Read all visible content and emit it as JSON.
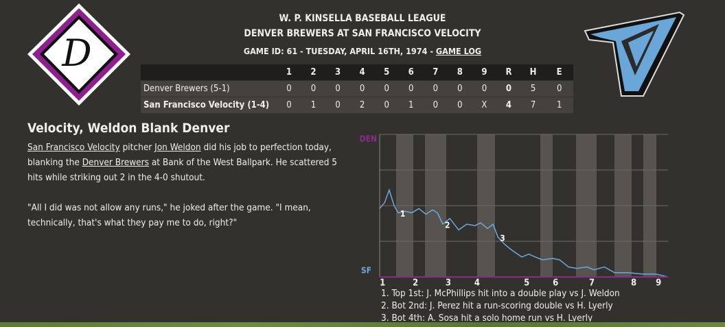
{
  "header": {
    "league": "W. P. KINSELLA BASEBALL LEAGUE",
    "matchup": "DENVER BREWERS AT SAN FRANCISCO VELOCITY",
    "game_info": "GAME ID: 61 - TUESDAY, APRIL 16TH, 1974 - ",
    "game_log_link": "GAME LOG"
  },
  "away_logo": {
    "letter": "D"
  },
  "box_score": {
    "header": [
      "",
      "1",
      "2",
      "3",
      "4",
      "5",
      "6",
      "7",
      "8",
      "9",
      "R",
      "H",
      "E"
    ],
    "rows": [
      [
        "Denver Brewers (5-1)",
        "0",
        "0",
        "0",
        "0",
        "0",
        "0",
        "0",
        "0",
        "0",
        "0",
        "5",
        "0"
      ],
      [
        "San Francisco Velocity (1-4)",
        "0",
        "1",
        "0",
        "2",
        "0",
        "1",
        "0",
        "0",
        "X",
        "4",
        "7",
        "1"
      ]
    ]
  },
  "article": {
    "headline": "Velocity, Weldon Blank Denver",
    "paragraphs": [
      [
        {
          "text": "San Francisco Velocity",
          "link": true
        },
        {
          "text": " pitcher ",
          "link": false
        },
        {
          "text": "Jon Weldon",
          "link": true
        },
        {
          "text": " did his job to perfection today, blanking the ",
          "link": false
        },
        {
          "text": "Denver Brewers",
          "link": true
        },
        {
          "text": " at Bank of the West Ballpark. He scattered 5 hits while striking out 2 in the 4-0 shutout.",
          "link": false
        }
      ],
      [
        {
          "text": "\"All I did was not allow any runs,\" he joked after the game. \"I mean, technically, that's what they pay me to do, right?\"",
          "link": false
        }
      ]
    ]
  },
  "win_chart": {
    "type": "line",
    "top_label": "DEN",
    "bottom_label": "SF",
    "top_color": "#8a2b8a",
    "bottom_color": "#6fa8dc",
    "color": "#6fa8dc",
    "x": [
      0,
      1.7,
      3.3,
      5,
      6.4,
      8.8,
      11.2,
      13.6,
      16,
      18.3,
      20,
      21.9,
      24.3,
      27.4,
      30.2,
      33.1,
      35,
      37.4,
      39.3,
      41,
      43.3,
      45.7,
      49.3,
      51.7,
      54,
      56.4,
      60,
      62.4,
      65.5,
      68.3,
      71.9,
      74.3,
      77.9,
      81.5,
      86.2,
      91,
      95.7,
      100
    ],
    "values": [
      48,
      52,
      61,
      50,
      45,
      46,
      45,
      48,
      44,
      47,
      45,
      37,
      41,
      33,
      37,
      36,
      38,
      34,
      37,
      28,
      23,
      19,
      14,
      16,
      14,
      12,
      13,
      12,
      7,
      6,
      7,
      5,
      7,
      3,
      3,
      2,
      2,
      0
    ],
    "xlim": [
      0,
      100
    ],
    "ylim": [
      0,
      100
    ],
    "ygrid": [
      0,
      25,
      50,
      75,
      100
    ],
    "xticks": [
      {
        "value": 1,
        "label": "1"
      },
      {
        "value": 12.4,
        "label": "2"
      },
      {
        "value": 23.8,
        "label": "3"
      },
      {
        "value": 33.8,
        "label": "4"
      },
      {
        "value": 51,
        "label": "5"
      },
      {
        "value": 61,
        "label": "6"
      },
      {
        "value": 73.6,
        "label": "7"
      },
      {
        "value": 88.1,
        "label": "8"
      },
      {
        "value": 96.7,
        "label": "9"
      }
    ],
    "annotations": [
      {
        "x": 6.4,
        "y": 45,
        "label": "1"
      },
      {
        "x": 21.9,
        "y": 37,
        "label": "2"
      },
      {
        "x": 41,
        "y": 28,
        "label": "3"
      }
    ],
    "events": [
      "1. Top 1st: J. McPhillips hit into a double play vs J. Weldon",
      "2. Bot 2nd: J. Perez hit a run-scoring double vs H. Lyerly",
      "3. Bot 4th: A. Sosa hit a solo home run vs H. Lyerly"
    ]
  }
}
